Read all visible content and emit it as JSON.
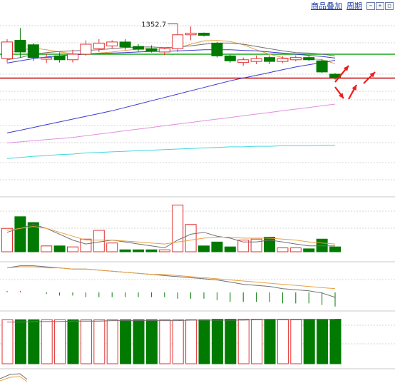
{
  "toolbar": {
    "overlay_link": "商品叠加",
    "period_link": "周期",
    "buttons": [
      {
        "icon": "zoom-out-icon",
        "glyph": "−"
      },
      {
        "icon": "zoom-in-icon",
        "glyph": "+"
      },
      {
        "icon": "maximize-icon",
        "glyph": "□"
      }
    ]
  },
  "annotations": {
    "high_price_label": "1352.7"
  },
  "colors": {
    "up": "#e03030",
    "down": "#007a00",
    "red_line": "#c00000",
    "green_line": "#18a818",
    "ma_orange": "#e8a040",
    "ma_gray": "#707070",
    "ma_blue": "#3a3ad0",
    "ma_pink": "#e090e0",
    "ma_cyan": "#40d8e0",
    "arrow": "#e82020"
  },
  "chart_data": [
    {
      "type": "candlestick",
      "panel": "price",
      "candles": [
        {
          "o": 1290,
          "h": 1325,
          "l": 1283,
          "c": 1320,
          "up": true
        },
        {
          "o": 1302,
          "h": 1345,
          "l": 1292,
          "c": 1323,
          "up": false
        },
        {
          "o": 1315,
          "h": 1318,
          "l": 1286,
          "c": 1292,
          "up": false
        },
        {
          "o": 1289,
          "h": 1299,
          "l": 1282,
          "c": 1292,
          "up": true
        },
        {
          "o": 1295,
          "h": 1301,
          "l": 1283,
          "c": 1288,
          "up": false
        },
        {
          "o": 1288,
          "h": 1306,
          "l": 1283,
          "c": 1298,
          "up": true
        },
        {
          "o": 1298,
          "h": 1323,
          "l": 1295,
          "c": 1316,
          "up": true
        },
        {
          "o": 1308,
          "h": 1325,
          "l": 1302,
          "c": 1318,
          "up": true
        },
        {
          "o": 1313,
          "h": 1323,
          "l": 1308,
          "c": 1320,
          "up": true
        },
        {
          "o": 1320,
          "h": 1325,
          "l": 1306,
          "c": 1311,
          "up": false
        },
        {
          "o": 1312,
          "h": 1316,
          "l": 1303,
          "c": 1307,
          "up": false
        },
        {
          "o": 1308,
          "h": 1314,
          "l": 1301,
          "c": 1304,
          "up": false
        },
        {
          "o": 1302,
          "h": 1310,
          "l": 1296,
          "c": 1308,
          "up": true
        },
        {
          "o": 1308,
          "h": 1352.7,
          "l": 1302,
          "c": 1333,
          "up": true
        },
        {
          "o": 1333,
          "h": 1348,
          "l": 1323,
          "c": 1336,
          "up": true
        },
        {
          "o": 1336,
          "h": 1337,
          "l": 1330,
          "c": 1332,
          "up": false
        },
        {
          "o": 1318,
          "h": 1320,
          "l": 1292,
          "c": 1295,
          "up": false
        },
        {
          "o": 1295,
          "h": 1297,
          "l": 1283,
          "c": 1286,
          "up": false
        },
        {
          "o": 1283,
          "h": 1292,
          "l": 1277,
          "c": 1288,
          "up": true
        },
        {
          "o": 1285,
          "h": 1296,
          "l": 1280,
          "c": 1290,
          "up": true
        },
        {
          "o": 1292,
          "h": 1296,
          "l": 1280,
          "c": 1285,
          "up": false
        },
        {
          "o": 1285,
          "h": 1294,
          "l": 1282,
          "c": 1290,
          "up": true
        },
        {
          "o": 1288,
          "h": 1296,
          "l": 1285,
          "c": 1292,
          "up": true
        },
        {
          "o": 1292,
          "h": 1295,
          "l": 1286,
          "c": 1288,
          "up": false
        },
        {
          "o": 1286,
          "h": 1289,
          "l": 1264,
          "c": 1266,
          "up": false
        },
        {
          "o": 1262,
          "h": 1264,
          "l": 1252,
          "c": 1256,
          "up": false
        }
      ],
      "hlines": [
        {
          "name": "green-support-line",
          "value": 1298,
          "color": "green_line"
        },
        {
          "name": "red-level-line",
          "value": 1255,
          "color": "red_line"
        }
      ],
      "ma_lines": [
        {
          "name": "ma-orange",
          "color": "ma_orange",
          "values": [
            1300,
            1305,
            1309,
            1306,
            1302,
            1299,
            1298,
            1300,
            1302,
            1305,
            1307,
            1308,
            1306,
            1309,
            1316,
            1322,
            1323,
            1321,
            1315,
            1306,
            1298,
            1292,
            1289,
            1290,
            1288,
            1281
          ]
        },
        {
          "name": "ma-gray",
          "color": "ma_gray",
          "values": [
            1288,
            1292,
            1298,
            1301,
            1303,
            1304,
            1305,
            1306,
            1308,
            1310,
            1311,
            1311,
            1310,
            1311,
            1313,
            1316,
            1318,
            1318,
            1316,
            1312,
            1308,
            1304,
            1301,
            1300,
            1298,
            1295
          ]
        },
        {
          "name": "ma-blue",
          "color": "ma_blue",
          "values": [
            1282,
            1286,
            1290,
            1293,
            1295,
            1297,
            1298,
            1299,
            1300,
            1301,
            1302,
            1303,
            1303,
            1304,
            1305,
            1306,
            1306,
            1306,
            1305,
            1304,
            1302,
            1300,
            1298,
            1296,
            1294,
            1291
          ]
        },
        {
          "name": "ma-darkblue",
          "color": "ma_blue",
          "values": [
            1156,
            1161,
            1166,
            1171,
            1176,
            1181,
            1186,
            1191,
            1196,
            1202,
            1208,
            1214,
            1220,
            1226,
            1232,
            1238,
            1244,
            1250,
            1255,
            1260,
            1265,
            1270,
            1275,
            1279,
            1283,
            1287
          ]
        },
        {
          "name": "ma-pink",
          "color": "ma_pink",
          "values": [
            1138,
            1140,
            1142,
            1144,
            1146,
            1148,
            1151,
            1154,
            1157,
            1160,
            1163,
            1166,
            1169,
            1172,
            1175,
            1178,
            1181,
            1184,
            1187,
            1190,
            1193,
            1196,
            1199,
            1202,
            1205,
            1208
          ]
        },
        {
          "name": "ma-cyan",
          "color": "ma_cyan",
          "values": [
            1110,
            1112,
            1114,
            1115,
            1117,
            1118,
            1120,
            1121,
            1122,
            1123,
            1124,
            1125,
            1126,
            1127,
            1128,
            1129,
            1130,
            1131,
            1131,
            1132,
            1132,
            1133,
            1133,
            1133,
            1134,
            1134
          ]
        }
      ]
    },
    {
      "type": "bar",
      "panel": "volume",
      "values": [
        24,
        36,
        30,
        6,
        6,
        5,
        13,
        22,
        9,
        2,
        2,
        2,
        2,
        48,
        28,
        6,
        10,
        5,
        12,
        13,
        15,
        4,
        4,
        3,
        13,
        5
      ],
      "ma_lines": [
        {
          "name": "vol-ma-gray",
          "color": "ma_gray",
          "values": [
            20,
            24,
            28,
            24,
            18,
            12,
            8,
            10,
            12,
            10,
            8,
            6,
            4,
            12,
            18,
            20,
            16,
            14,
            10,
            10,
            12,
            10,
            8,
            6,
            6,
            6
          ]
        },
        {
          "name": "vol-ma-orange",
          "color": "ma_orange",
          "values": [
            22,
            24,
            26,
            24,
            20,
            16,
            12,
            12,
            12,
            11,
            10,
            9,
            8,
            10,
            12,
            14,
            15,
            15,
            14,
            14,
            14,
            13,
            12,
            10,
            9,
            8
          ]
        }
      ]
    },
    {
      "type": "line",
      "panel": "oscillator",
      "series": [
        {
          "name": "osc-dark",
          "color": "ma_gray",
          "values": [
            5,
            7,
            7,
            6,
            5,
            4,
            4,
            3,
            2,
            1,
            0,
            -1,
            -2,
            -3,
            -4,
            -5,
            -6,
            -8,
            -10,
            -11,
            -12,
            -14,
            -15,
            -16,
            -18,
            -22
          ]
        },
        {
          "name": "osc-orange",
          "color": "ma_orange",
          "values": [
            5,
            6,
            6,
            5,
            5,
            4,
            4,
            3,
            2,
            1,
            0,
            -1,
            -1,
            -2,
            -3,
            -4,
            -5,
            -6,
            -7,
            -8,
            -9,
            -10,
            -11,
            -12,
            -13,
            -14
          ]
        }
      ],
      "histogram": [
        1,
        1,
        0,
        -1,
        -2,
        -2,
        -3,
        -3,
        -3,
        -3,
        -3,
        -3,
        -3,
        -4,
        -4,
        -4,
        -5,
        -6,
        -6,
        -6,
        -6,
        -7,
        -7,
        -7,
        -8,
        -9
      ]
    },
    {
      "type": "bar",
      "panel": "indicator",
      "values": [
        95,
        95,
        95,
        95,
        95,
        95,
        95,
        95,
        95,
        95,
        95,
        95,
        95,
        95,
        95,
        95,
        96,
        96,
        96,
        96,
        96,
        96,
        96,
        96,
        96,
        96
      ],
      "up": [
        true,
        false,
        false,
        true,
        true,
        false,
        true,
        true,
        true,
        false,
        false,
        false,
        true,
        true,
        true,
        false,
        false,
        false,
        true,
        true,
        false,
        true,
        true,
        false,
        false,
        false
      ],
      "ma": [
        90,
        90,
        91,
        91,
        91,
        92,
        92,
        92,
        93,
        93,
        93,
        93,
        93,
        93,
        94,
        94,
        94,
        94,
        94,
        95,
        95,
        95,
        95,
        95,
        95,
        95
      ]
    }
  ]
}
